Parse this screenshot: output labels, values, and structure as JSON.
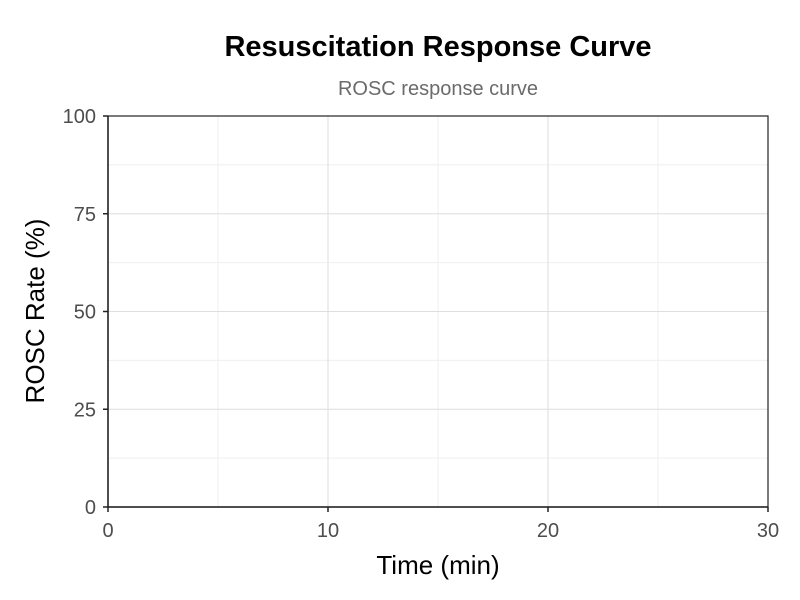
{
  "chart_data": {
    "type": "line",
    "title": "Resuscitation Response Curve",
    "subtitle": "ROSC response curve",
    "xlabel": "Time (min)",
    "ylabel": "ROSC Rate (%)",
    "xlim": [
      0,
      30
    ],
    "ylim": [
      0,
      100
    ],
    "x_ticks": [
      0,
      10,
      20,
      30
    ],
    "y_ticks": [
      0,
      25,
      50,
      75,
      100
    ],
    "x_minor_ticks": [
      5,
      15,
      25
    ],
    "y_minor_ticks": [
      12.5,
      37.5,
      62.5,
      87.5
    ],
    "grid": true,
    "legend": "none",
    "series": []
  }
}
